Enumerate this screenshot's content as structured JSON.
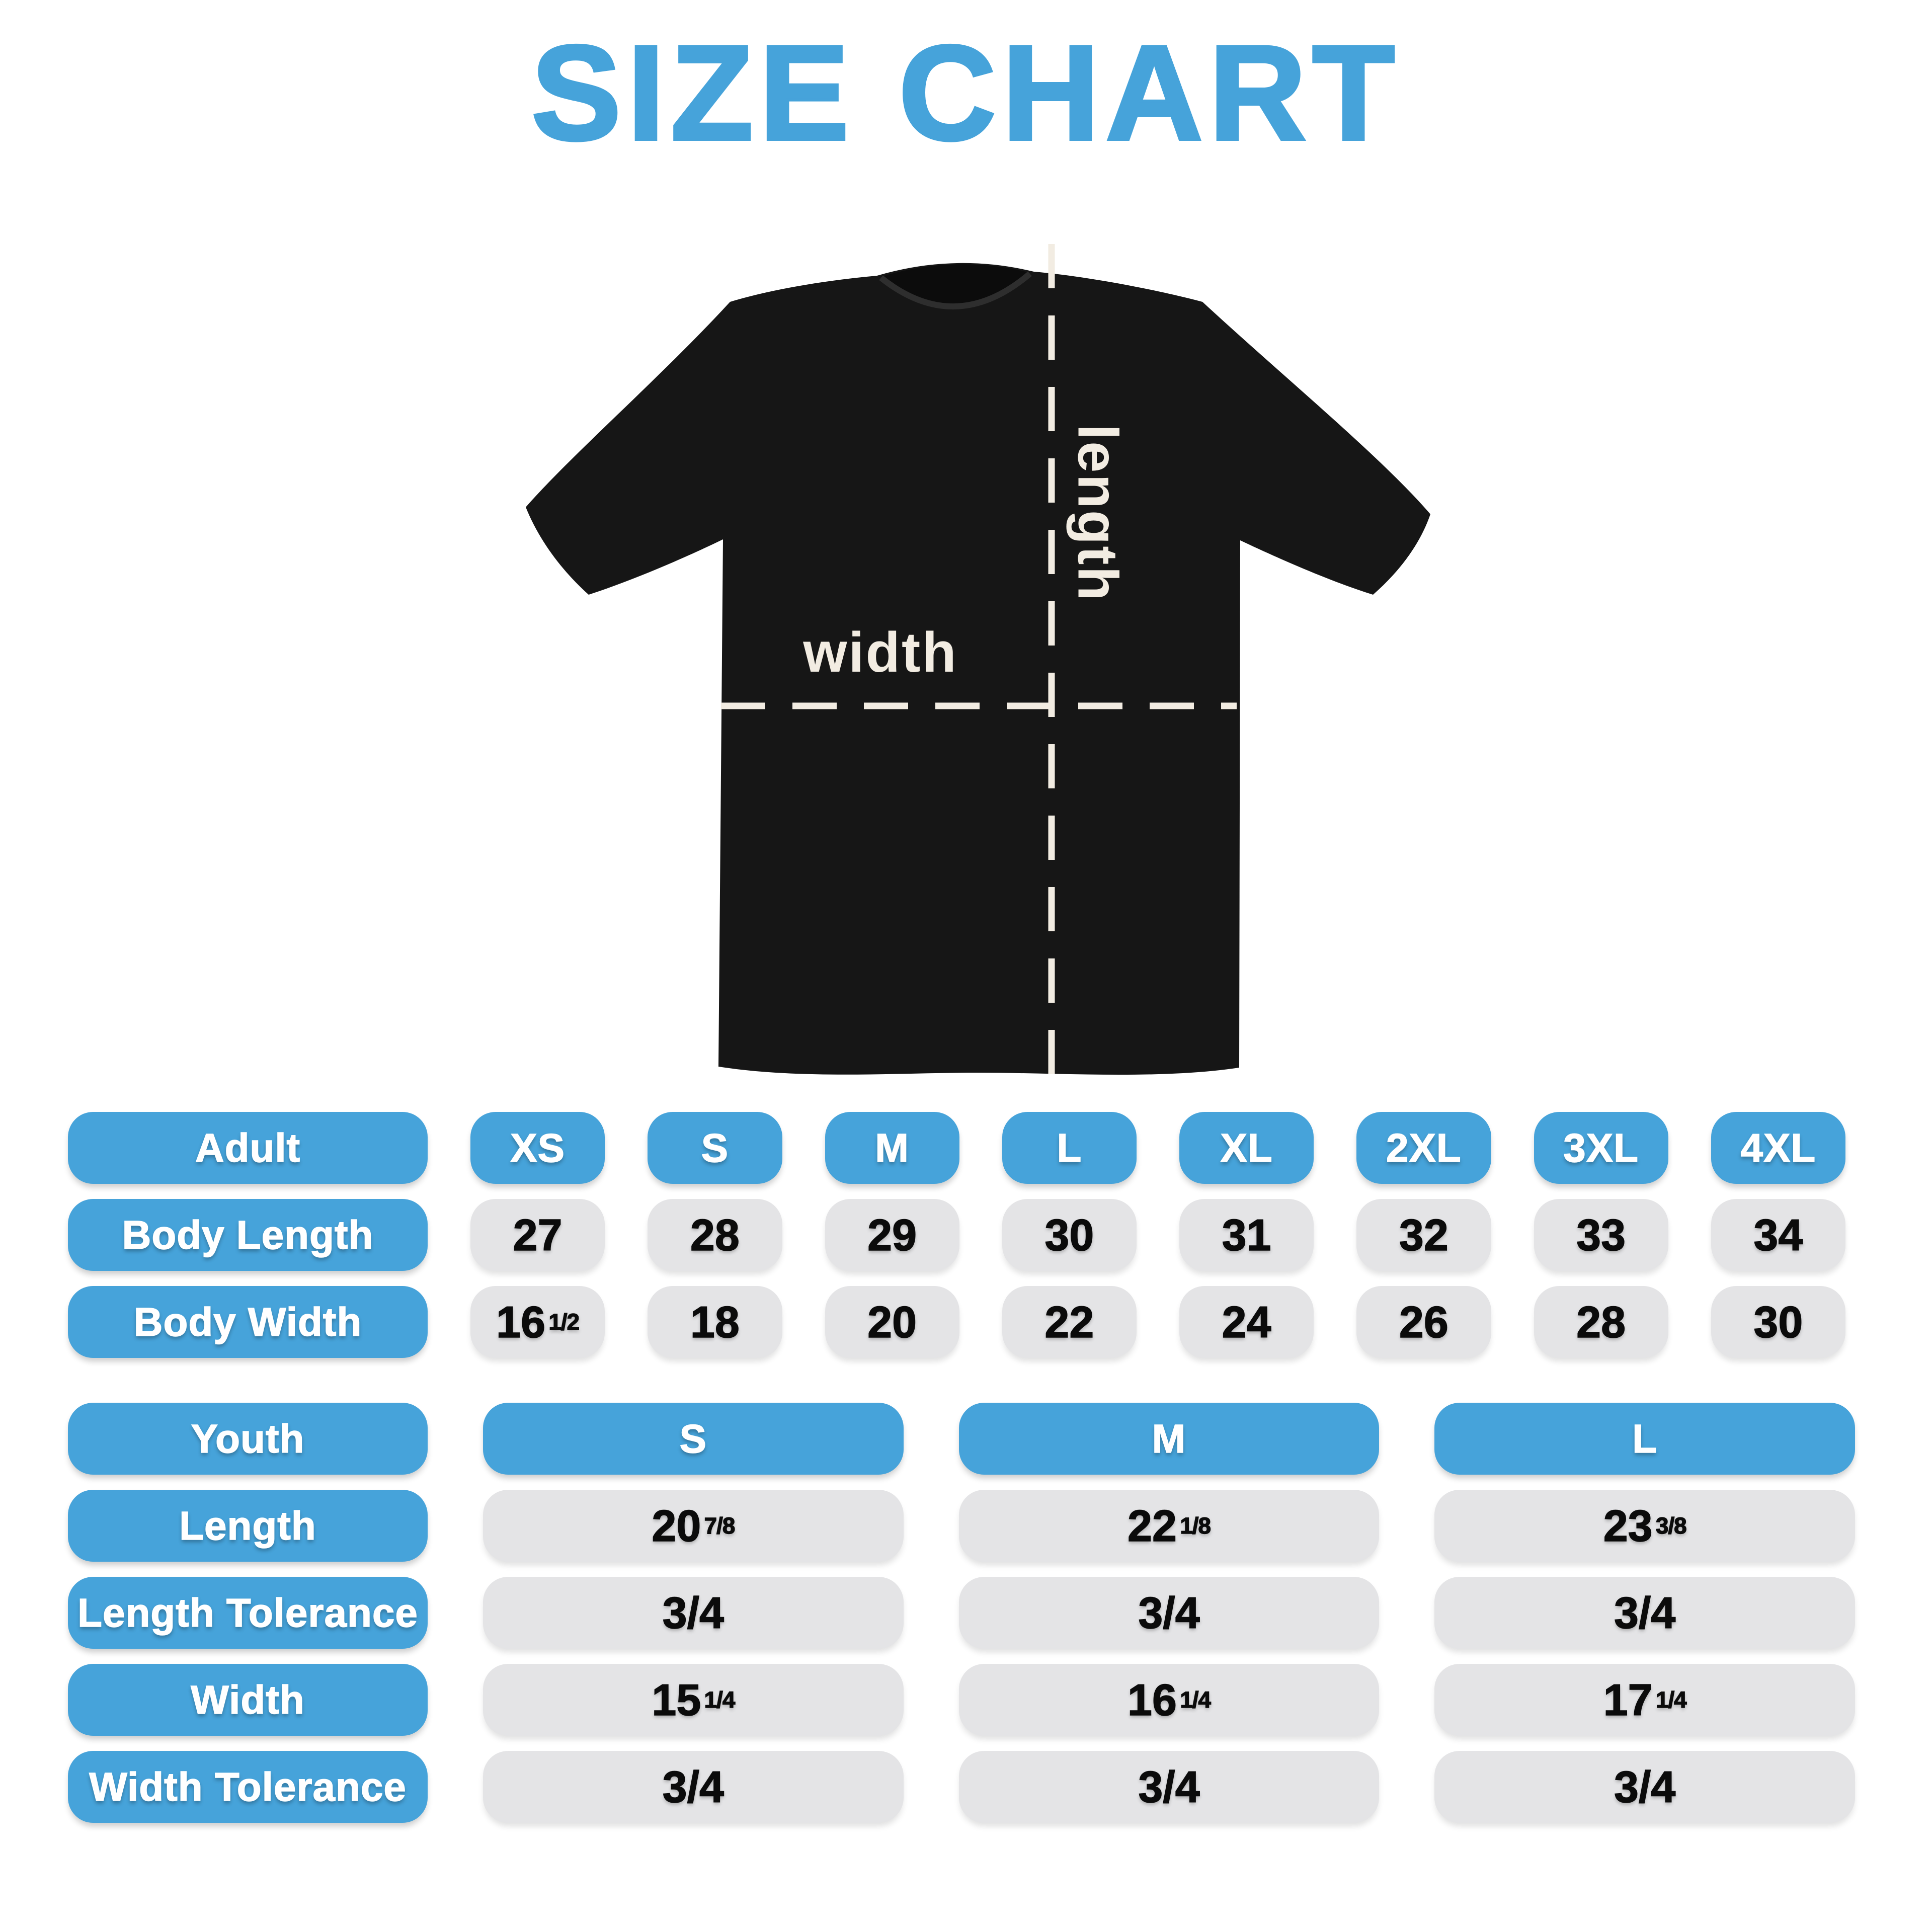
{
  "title": "SIZE CHART",
  "diagram": {
    "width_label": "width",
    "length_label": "length"
  },
  "adult_table": {
    "header": [
      "Adult",
      "XS",
      "S",
      "M",
      "L",
      "XL",
      "2XL",
      "3XL",
      "4XL"
    ],
    "rows": [
      {
        "label": "Body Length",
        "values": [
          {
            "num": "27"
          },
          {
            "num": "28"
          },
          {
            "num": "29"
          },
          {
            "num": "30"
          },
          {
            "num": "31"
          },
          {
            "num": "32"
          },
          {
            "num": "33"
          },
          {
            "num": "34"
          }
        ]
      },
      {
        "label": "Body Width",
        "values": [
          {
            "num": "16",
            "frac": "1/2"
          },
          {
            "num": "18"
          },
          {
            "num": "20"
          },
          {
            "num": "22"
          },
          {
            "num": "24"
          },
          {
            "num": "26"
          },
          {
            "num": "28"
          },
          {
            "num": "30"
          }
        ]
      }
    ]
  },
  "youth_table": {
    "header": [
      "Youth",
      "S",
      "M",
      "L"
    ],
    "rows": [
      {
        "label": "Length",
        "values": [
          {
            "num": "20",
            "frac": "7/8"
          },
          {
            "num": "22",
            "frac": "1/8"
          },
          {
            "num": "23",
            "frac": "3/8"
          }
        ]
      },
      {
        "label": "Length Tolerance",
        "values": [
          {
            "num": "3/4"
          },
          {
            "num": "3/4"
          },
          {
            "num": "3/4"
          }
        ]
      },
      {
        "label": "Width",
        "values": [
          {
            "num": "15",
            "frac": "1/4"
          },
          {
            "num": "16",
            "frac": "1/4"
          },
          {
            "num": "17",
            "frac": "1/4"
          }
        ]
      },
      {
        "label": "Width Tolerance",
        "values": [
          {
            "num": "3/4"
          },
          {
            "num": "3/4"
          },
          {
            "num": "3/4"
          }
        ]
      }
    ]
  },
  "colors": {
    "accent_blue": "#46a3da",
    "pill_gray": "#e4e4e6",
    "shirt_black": "#161616",
    "measure_cream": "#f2ece2"
  }
}
